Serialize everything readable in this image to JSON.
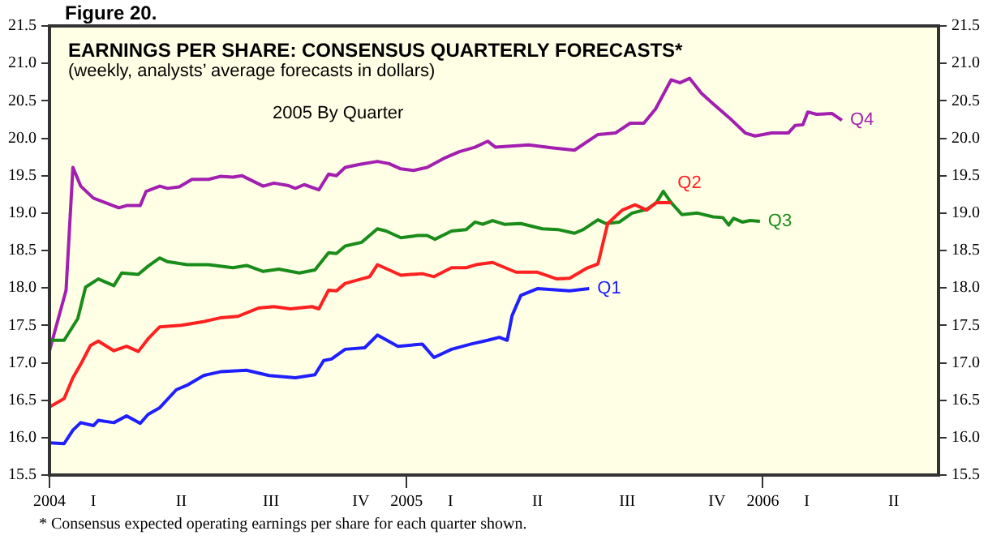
{
  "chart_data": {
    "type": "line",
    "title": "EARNINGS PER SHARE: CONSENSUS QUARTERLY FORECASTS*",
    "subtitle": "(weekly, analysts’ average forecasts in dollars)",
    "annotations": [
      "Figure 20.",
      "2005 By Quarter",
      "*  Consensus expected operating earnings per share for each quarter shown."
    ],
    "series": [
      {
        "name": "Q1",
        "color": "#1f1fff",
        "x": [
          "2004-01-01",
          "2004-01-16",
          "2004-01-25",
          "2004-02-02",
          "2004-02-15",
          "2004-02-20",
          "2004-03-07",
          "2004-03-20",
          "2004-04-03",
          "2004-04-11",
          "2004-04-23",
          "2004-05-10",
          "2004-05-21",
          "2004-06-07",
          "2004-06-24",
          "2004-07-21",
          "2004-08-13",
          "2004-09-09",
          "2004-09-29",
          "2004-10-08",
          "2004-10-16",
          "2004-10-30",
          "2004-11-19",
          "2004-12-02",
          "2004-12-23",
          "2005-01-17",
          "2005-01-29",
          "2005-02-16",
          "2005-03-08",
          "2005-03-25",
          "2005-04-06",
          "2005-04-14",
          "2005-04-19",
          "2005-04-28",
          "2005-05-15",
          "2005-06-17",
          "2005-07-07"
        ],
        "values": [
          15.93,
          15.92,
          16.1,
          16.2,
          16.16,
          16.23,
          16.2,
          16.29,
          16.19,
          16.31,
          16.4,
          16.64,
          16.7,
          16.83,
          16.88,
          16.9,
          16.83,
          16.8,
          16.84,
          17.03,
          17.05,
          17.18,
          17.2,
          17.37,
          17.22,
          17.25,
          17.07,
          17.18,
          17.25,
          17.3,
          17.34,
          17.3,
          17.63,
          17.9,
          17.99,
          17.96,
          17.99
        ]
      },
      {
        "name": "Q2",
        "color": "#ff2020",
        "x": [
          "2004-01-01",
          "2004-01-16",
          "2004-01-25",
          "2004-02-02",
          "2004-02-12",
          "2004-02-20",
          "2004-03-07",
          "2004-03-20",
          "2004-04-01",
          "2004-04-11",
          "2004-04-23",
          "2004-05-15",
          "2004-06-07",
          "2004-06-24",
          "2004-07-12",
          "2004-08-02",
          "2004-08-18",
          "2004-09-04",
          "2004-09-26",
          "2004-10-03",
          "2004-10-13",
          "2004-10-21",
          "2004-10-30",
          "2004-11-24",
          "2004-12-02",
          "2004-12-26",
          "2005-01-17",
          "2005-01-29",
          "2005-02-16",
          "2005-03-03",
          "2005-03-13",
          "2005-03-30",
          "2005-04-23",
          "2005-05-15",
          "2005-06-04",
          "2005-06-17",
          "2005-07-04",
          "2005-07-16",
          "2005-07-26",
          "2005-08-10",
          "2005-08-23",
          "2005-09-04",
          "2005-09-14",
          "2005-09-29"
        ],
        "values": [
          16.41,
          16.52,
          16.8,
          16.98,
          17.23,
          17.29,
          17.16,
          17.22,
          17.15,
          17.32,
          17.48,
          17.5,
          17.55,
          17.6,
          17.62,
          17.73,
          17.75,
          17.72,
          17.75,
          17.72,
          17.97,
          17.96,
          18.06,
          18.15,
          18.31,
          18.17,
          18.19,
          18.15,
          18.27,
          18.27,
          18.31,
          18.34,
          18.21,
          18.21,
          18.12,
          18.13,
          18.26,
          18.32,
          18.86,
          19.04,
          19.11,
          19.04,
          19.14,
          19.14
        ]
      },
      {
        "name": "Q3",
        "color": "#1a8c1a",
        "x": [
          "2004-01-01",
          "2004-01-16",
          "2004-01-30",
          "2004-02-07",
          "2004-02-20",
          "2004-03-07",
          "2004-03-15",
          "2004-04-01",
          "2004-04-11",
          "2004-04-23",
          "2004-05-01",
          "2004-05-21",
          "2004-06-12",
          "2004-07-07",
          "2004-07-21",
          "2004-08-07",
          "2004-08-23",
          "2004-09-13",
          "2004-09-29",
          "2004-10-13",
          "2004-10-21",
          "2004-10-30",
          "2004-11-16",
          "2004-12-02",
          "2004-12-11",
          "2004-12-26",
          "2005-01-12",
          "2005-01-22",
          "2005-01-30",
          "2005-02-16",
          "2005-03-03",
          "2005-03-12",
          "2005-03-20",
          "2005-03-30",
          "2005-04-11",
          "2005-04-28",
          "2005-05-20",
          "2005-06-05",
          "2005-06-22",
          "2005-07-01",
          "2005-07-16",
          "2005-07-24",
          "2005-08-07",
          "2005-08-20",
          "2005-09-04",
          "2005-09-14",
          "2005-09-21",
          "2005-09-29",
          "2005-10-10",
          "2005-10-26",
          "2005-11-11",
          "2005-11-21",
          "2005-11-27",
          "2005-12-02",
          "2005-12-11",
          "2005-12-19",
          "2005-12-29"
        ],
        "values": [
          17.3,
          17.3,
          17.59,
          18.01,
          18.12,
          18.03,
          18.2,
          18.18,
          18.29,
          18.4,
          18.35,
          18.31,
          18.31,
          18.27,
          18.3,
          18.22,
          18.25,
          18.2,
          18.24,
          18.47,
          18.46,
          18.56,
          18.61,
          18.79,
          18.76,
          18.67,
          18.7,
          18.7,
          18.65,
          18.76,
          18.78,
          18.88,
          18.85,
          18.9,
          18.85,
          18.86,
          18.79,
          18.78,
          18.73,
          18.78,
          18.91,
          18.86,
          18.88,
          19.0,
          19.05,
          19.14,
          19.29,
          19.14,
          18.98,
          19.0,
          18.95,
          18.94,
          18.84,
          18.93,
          18.88,
          18.9,
          18.89
        ]
      },
      {
        "name": "Q4",
        "color": "#a21fb0",
        "x": [
          "2004-01-01",
          "2004-01-18",
          "2004-01-25",
          "2004-02-02",
          "2004-02-15",
          "2004-03-12",
          "2004-03-20",
          "2004-04-03",
          "2004-04-09",
          "2004-04-23",
          "2004-05-01",
          "2004-05-13",
          "2004-05-26",
          "2004-06-12",
          "2004-06-24",
          "2004-07-07",
          "2004-07-16",
          "2004-08-07",
          "2004-08-18",
          "2004-09-01",
          "2004-09-09",
          "2004-09-18",
          "2004-10-03",
          "2004-10-13",
          "2004-10-21",
          "2004-10-30",
          "2004-11-14",
          "2004-12-02",
          "2004-12-14",
          "2004-12-26",
          "2005-01-08",
          "2005-01-22",
          "2005-02-08",
          "2005-02-24",
          "2005-03-12",
          "2005-03-25",
          "2005-04-02",
          "2005-05-06",
          "2005-05-31",
          "2005-06-22",
          "2005-07-16",
          "2005-08-03",
          "2005-08-18",
          "2005-09-01",
          "2005-09-13",
          "2005-09-29",
          "2005-10-08",
          "2005-10-18",
          "2005-10-30",
          "2005-11-11",
          "2005-11-27",
          "2005-12-14",
          "2005-12-24",
          "2006-01-10",
          "2006-01-27",
          "2006-02-03",
          "2006-02-11",
          "2006-02-16",
          "2006-02-25",
          "2006-03-13",
          "2006-03-23"
        ],
        "values": [
          17.16,
          17.97,
          19.61,
          19.36,
          19.2,
          19.07,
          19.1,
          19.1,
          19.29,
          19.36,
          19.33,
          19.35,
          19.45,
          19.45,
          19.49,
          19.48,
          19.5,
          19.36,
          19.4,
          19.37,
          19.33,
          19.38,
          19.31,
          19.52,
          19.5,
          19.61,
          19.65,
          19.69,
          19.66,
          19.59,
          19.57,
          19.61,
          19.73,
          19.82,
          19.88,
          19.96,
          19.88,
          19.91,
          19.87,
          19.84,
          20.05,
          20.07,
          20.2,
          20.2,
          20.39,
          20.78,
          20.74,
          20.8,
          20.6,
          20.46,
          20.28,
          20.07,
          20.03,
          20.07,
          20.07,
          20.17,
          20.18,
          20.35,
          20.32,
          20.33,
          20.24
        ]
      }
    ],
    "xlim": [
      "2004-01-01",
      "2006-06-30"
    ],
    "xticks": [
      {
        "value": "2004",
        "label": "2004"
      },
      {
        "value": "2004-02-15",
        "label": "I"
      },
      {
        "value": "2004-05-15",
        "label": "II"
      },
      {
        "value": "2004-08-15",
        "label": "III"
      },
      {
        "value": "2004-11-15",
        "label": "IV"
      },
      {
        "value": "2005",
        "label": "2005"
      },
      {
        "value": "2005-02-15",
        "label": "I"
      },
      {
        "value": "2005-05-15",
        "label": "II"
      },
      {
        "value": "2005-08-15",
        "label": "III"
      },
      {
        "value": "2005-11-15",
        "label": "IV"
      },
      {
        "value": "2006",
        "label": "2006"
      },
      {
        "value": "2006-02-15",
        "label": "I"
      },
      {
        "value": "2006-05-15",
        "label": "II"
      }
    ],
    "ylim": [
      15.5,
      21.5
    ],
    "yticks": [
      15.5,
      {
        "value": 16,
        "label": "16.0"
      },
      16.5,
      {
        "value": 17,
        "label": "17.0"
      },
      17.5,
      {
        "value": 18,
        "label": "18.0"
      },
      18.5,
      {
        "value": 19,
        "label": "19.0"
      },
      19.5,
      {
        "value": 20,
        "label": "20.0"
      },
      20.5,
      {
        "value": 21,
        "label": "21.0"
      },
      21.5
    ],
    "y2lim": [
      15.5,
      21.5
    ],
    "y2ticks": [
      15.5,
      {
        "value": 16,
        "label": "16.0"
      },
      16.5,
      {
        "value": 17,
        "label": "17.0"
      },
      17.5,
      {
        "value": 18,
        "label": "18.0"
      },
      18.5,
      {
        "value": 19,
        "label": "19.0"
      },
      19.5,
      {
        "value": 20,
        "label": "20.0"
      },
      20.5,
      {
        "value": 21,
        "label": "21.0"
      },
      21.5
    ],
    "legend": false
  }
}
